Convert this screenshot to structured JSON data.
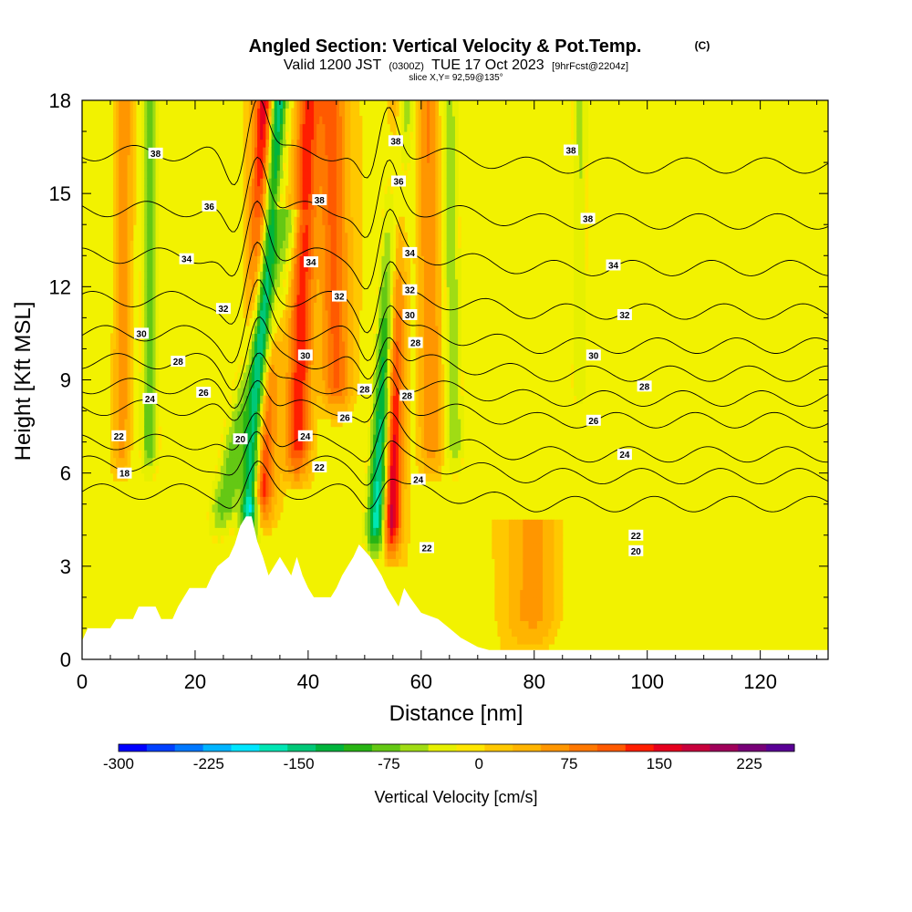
{
  "chart_data": {
    "type": "heatmap",
    "title": "Angled Section: Vertical Velocity & Pot.Temp.",
    "title_unit": "(C)",
    "subtitle": {
      "prefix": "Valid 1200 JST",
      "utc": "(0300Z)",
      "date": "TUE 17 Oct 2023",
      "forecast": "[9hrFcst@2204z]"
    },
    "slice_label": "slice X,Y= 92,59@135°",
    "xlabel": "Distance [nm]",
    "ylabel": "Height [Kft MSL]",
    "xlim": [
      0,
      132
    ],
    "ylim": [
      0,
      18
    ],
    "x_ticks": [
      "0",
      "20",
      "40",
      "60",
      "80",
      "100",
      "120"
    ],
    "y_ticks": [
      "0",
      "3",
      "6",
      "9",
      "12",
      "15",
      "18"
    ],
    "colorbar": {
      "label": "Vertical Velocity [cm/s]",
      "tick_labels": [
        "-300",
        "-225",
        "-150",
        "-75",
        "0",
        "75",
        "150",
        "225"
      ],
      "range": [
        -300,
        262.5
      ],
      "colors": [
        "#0000ff",
        "#0040ff",
        "#0078ff",
        "#00b4ff",
        "#00e6ff",
        "#00e6b4",
        "#00c878",
        "#00b43c",
        "#28b414",
        "#64c814",
        "#a0dc14",
        "#e6f000",
        "#ffe600",
        "#ffc800",
        "#ffb400",
        "#ff9600",
        "#ff7800",
        "#ff5a00",
        "#ff1e00",
        "#e6001e",
        "#c8003c",
        "#a0005a",
        "#780078",
        "#5a0096"
      ]
    },
    "velocity_features": [
      {
        "x": 31,
        "bottom": 4.5,
        "top": 18,
        "tilt": 2.0,
        "width": 2.2,
        "peak": 210
      },
      {
        "x": 29.5,
        "bottom": 4.0,
        "top": 18,
        "tilt": 5.0,
        "width": 1.6,
        "peak": -285
      },
      {
        "x": 54.5,
        "bottom": 3.5,
        "top": 18,
        "tilt": 1.5,
        "width": 1.6,
        "peak": 195
      },
      {
        "x": 52,
        "bottom": 3.5,
        "top": 18,
        "tilt": 4.5,
        "width": 1.8,
        "peak": -200
      },
      {
        "x": 24,
        "bottom": 4.0,
        "top": 14,
        "tilt": 12.0,
        "width": 2.5,
        "peak": -90
      },
      {
        "x": 38,
        "bottom": 6.0,
        "top": 18,
        "tilt": 2.0,
        "width": 2.0,
        "peak": 130
      },
      {
        "x": 45,
        "bottom": 8.0,
        "top": 18,
        "tilt": -1.0,
        "width": 2.5,
        "peak": 100
      },
      {
        "x": 12,
        "bottom": 6.0,
        "top": 18,
        "tilt": 0.0,
        "width": 1.5,
        "peak": -90
      },
      {
        "x": 7,
        "bottom": 6.0,
        "top": 18,
        "tilt": 0.5,
        "width": 1.5,
        "peak": 60
      },
      {
        "x": 62,
        "bottom": 6.0,
        "top": 18,
        "tilt": -1.0,
        "width": 2.0,
        "peak": 70
      },
      {
        "x": 66,
        "bottom": 6.0,
        "top": 18,
        "tilt": -1.0,
        "width": 1.5,
        "peak": -70
      },
      {
        "x": 88,
        "bottom": 8.0,
        "top": 18,
        "tilt": 0.0,
        "width": 1.5,
        "peak": -55
      },
      {
        "x": 80,
        "bottom": 0.5,
        "top": 4.0,
        "tilt": 0.0,
        "width": 4.0,
        "peak": 55
      }
    ],
    "terrain": [
      [
        0,
        0.6
      ],
      [
        1,
        1.0
      ],
      [
        5,
        1.0
      ],
      [
        6,
        1.3
      ],
      [
        9,
        1.3
      ],
      [
        10,
        1.7
      ],
      [
        13,
        1.7
      ],
      [
        14,
        1.3
      ],
      [
        16,
        1.3
      ],
      [
        17,
        1.7
      ],
      [
        18,
        2.0
      ],
      [
        19,
        2.3
      ],
      [
        22,
        2.3
      ],
      [
        23,
        2.7
      ],
      [
        24,
        3.0
      ],
      [
        26,
        3.3
      ],
      [
        27,
        3.7
      ],
      [
        28,
        4.3
      ],
      [
        29,
        4.6
      ],
      [
        30,
        4.6
      ],
      [
        31,
        3.8
      ],
      [
        32,
        3.3
      ],
      [
        33,
        2.7
      ],
      [
        34,
        3.0
      ],
      [
        35,
        3.3
      ],
      [
        36,
        3.0
      ],
      [
        37,
        2.7
      ],
      [
        38,
        3.3
      ],
      [
        39,
        2.7
      ],
      [
        40,
        2.3
      ],
      [
        41,
        2.0
      ],
      [
        44,
        2.0
      ],
      [
        45,
        2.3
      ],
      [
        46,
        2.7
      ],
      [
        47,
        3.0
      ],
      [
        48,
        3.3
      ],
      [
        49,
        3.7
      ],
      [
        51,
        3.3
      ],
      [
        52,
        3.0
      ],
      [
        53,
        2.7
      ],
      [
        54,
        2.3
      ],
      [
        55,
        2.0
      ],
      [
        56,
        1.7
      ],
      [
        57,
        2.3
      ],
      [
        58,
        2.0
      ],
      [
        60,
        1.5
      ],
      [
        63,
        1.3
      ],
      [
        65,
        1.0
      ],
      [
        67,
        0.7
      ],
      [
        70,
        0.4
      ],
      [
        72,
        0.3
      ],
      [
        132,
        0.3
      ]
    ],
    "isentropes": [
      {
        "label": "18",
        "base": 5.4,
        "n": 0
      },
      {
        "label": "20",
        "base": 6.3,
        "n": 1
      },
      {
        "label": "22",
        "base": 7.0,
        "n": 2
      },
      {
        "label": "24",
        "base": 8.1,
        "n": 3
      },
      {
        "label": "26",
        "base": 8.8,
        "n": 4
      },
      {
        "label": "28",
        "base": 9.6,
        "n": 5
      },
      {
        "label": "30",
        "base": 10.5,
        "n": 6
      },
      {
        "label": "32",
        "base": 11.6,
        "n": 7
      },
      {
        "label": "34",
        "base": 13.0,
        "n": 8
      },
      {
        "label": "36",
        "base": 14.5,
        "n": 9
      },
      {
        "label": "38",
        "base": 16.3,
        "n": 10
      }
    ],
    "contour_labels": [
      {
        "text": "18",
        "x": 7.5,
        "y": 6.0
      },
      {
        "text": "22",
        "x": 6.5,
        "y": 7.2
      },
      {
        "text": "24",
        "x": 12,
        "y": 8.4
      },
      {
        "text": "28",
        "x": 17,
        "y": 9.6
      },
      {
        "text": "30",
        "x": 10.5,
        "y": 10.5
      },
      {
        "text": "26",
        "x": 21.5,
        "y": 8.6
      },
      {
        "text": "32",
        "x": 25,
        "y": 11.3
      },
      {
        "text": "34",
        "x": 18.5,
        "y": 12.9
      },
      {
        "text": "36",
        "x": 22.5,
        "y": 14.6
      },
      {
        "text": "38",
        "x": 13,
        "y": 16.3
      },
      {
        "text": "20",
        "x": 28,
        "y": 7.1
      },
      {
        "text": "24",
        "x": 39.5,
        "y": 7.2
      },
      {
        "text": "22",
        "x": 42,
        "y": 6.2
      },
      {
        "text": "26",
        "x": 46.5,
        "y": 7.8
      },
      {
        "text": "28",
        "x": 50,
        "y": 8.7
      },
      {
        "text": "30",
        "x": 39.5,
        "y": 9.8
      },
      {
        "text": "32",
        "x": 45.5,
        "y": 11.7
      },
      {
        "text": "34",
        "x": 40.5,
        "y": 12.8
      },
      {
        "text": "38",
        "x": 42,
        "y": 14.8
      },
      {
        "text": "38",
        "x": 55.5,
        "y": 16.7
      },
      {
        "text": "36",
        "x": 56,
        "y": 15.4
      },
      {
        "text": "34",
        "x": 58,
        "y": 13.1
      },
      {
        "text": "32",
        "x": 58,
        "y": 11.9
      },
      {
        "text": "30",
        "x": 58,
        "y": 11.1
      },
      {
        "text": "28",
        "x": 59,
        "y": 10.2
      },
      {
        "text": "28",
        "x": 57.5,
        "y": 8.5
      },
      {
        "text": "24",
        "x": 59.5,
        "y": 5.8
      },
      {
        "text": "22",
        "x": 61,
        "y": 3.6
      },
      {
        "text": "38",
        "x": 86.5,
        "y": 16.4
      },
      {
        "text": "38",
        "x": 89.5,
        "y": 14.2
      },
      {
        "text": "34",
        "x": 94,
        "y": 12.7
      },
      {
        "text": "32",
        "x": 96,
        "y": 11.1
      },
      {
        "text": "30",
        "x": 90.5,
        "y": 9.8
      },
      {
        "text": "28",
        "x": 99.5,
        "y": 8.8
      },
      {
        "text": "26",
        "x": 90.5,
        "y": 7.7
      },
      {
        "text": "24",
        "x": 96,
        "y": 6.6
      },
      {
        "text": "22",
        "x": 98,
        "y": 4.0
      },
      {
        "text": "20",
        "x": 98,
        "y": 3.5
      }
    ],
    "grid": false
  }
}
